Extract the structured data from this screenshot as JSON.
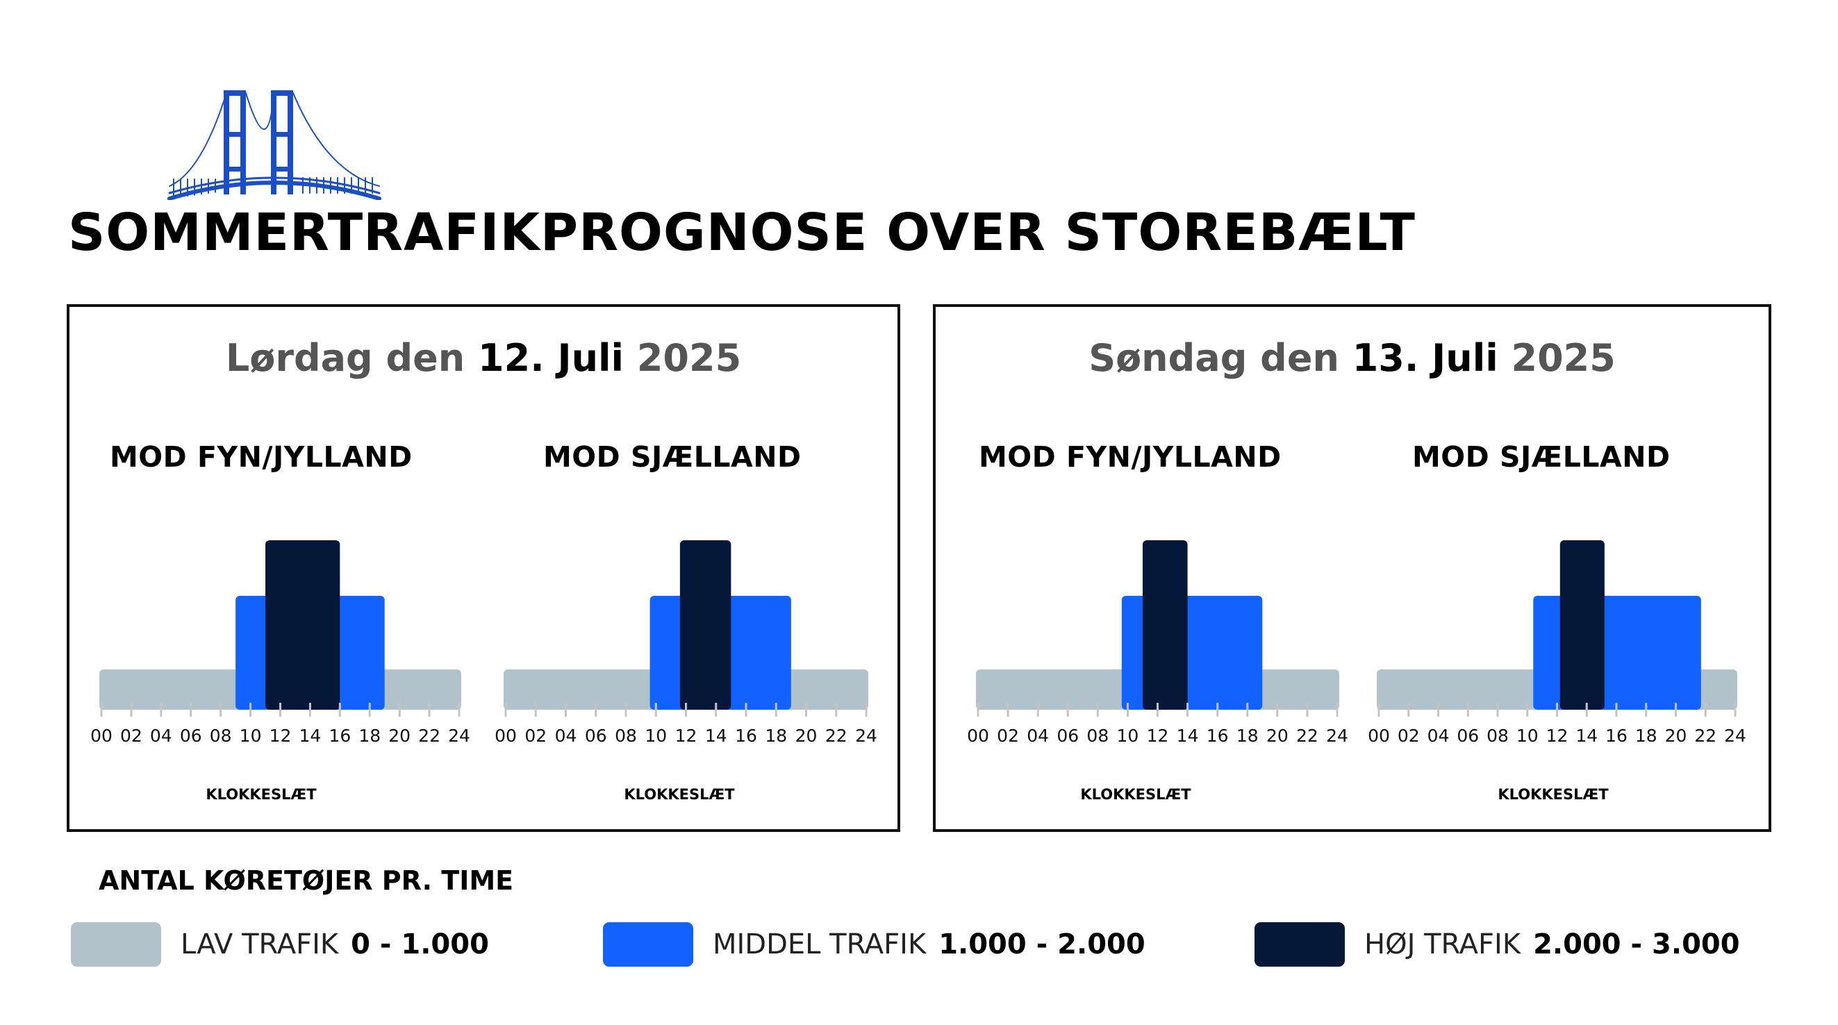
{
  "title": "SOMMERTRAFIKPROGNOSE OVER STOREBÆLT",
  "logo": {
    "icon": "bridge-logo-icon",
    "color": "#1c4fc4"
  },
  "colors": {
    "low": "#b2c2cb",
    "medium": "#1262ff",
    "high": "#06183a",
    "axis": "#c4c4c4",
    "tick_text": "#111111"
  },
  "days": [
    {
      "title_prefix": "Lørdag den ",
      "title_date": "12. Juli",
      "title_year": " 2025"
    },
    {
      "title_prefix": "Søndag den ",
      "title_date": "13. Juli",
      "title_year": " 2025"
    }
  ],
  "chart_data": [
    {
      "type": "bar",
      "day": "Lørdag den 12. Juli 2025",
      "title": "MOD FYN/JYLLAND",
      "xlabel": "KLOKKESLÆT",
      "x_range": [
        0,
        24
      ],
      "x_ticks": [
        "00",
        "02",
        "04",
        "06",
        "08",
        "10",
        "12",
        "14",
        "16",
        "18",
        "20",
        "22",
        "24"
      ],
      "y_range": [
        0,
        3
      ],
      "segments": [
        {
          "level": "low",
          "start": 0,
          "end": 24
        },
        {
          "level": "medium",
          "start": 9,
          "end": 19
        },
        {
          "level": "high",
          "start": 11,
          "end": 16
        }
      ]
    },
    {
      "type": "bar",
      "day": "Lørdag den 12. Juli 2025",
      "title": "MOD SJÆLLAND",
      "xlabel": "KLOKKESLÆT",
      "x_range": [
        0,
        24
      ],
      "x_ticks": [
        "00",
        "02",
        "04",
        "06",
        "08",
        "10",
        "12",
        "14",
        "16",
        "18",
        "20",
        "22",
        "24"
      ],
      "y_range": [
        0,
        3
      ],
      "segments": [
        {
          "level": "low",
          "start": 0,
          "end": 24
        },
        {
          "level": "medium",
          "start": 9.6,
          "end": 19
        },
        {
          "level": "high",
          "start": 11.6,
          "end": 15
        }
      ]
    },
    {
      "type": "bar",
      "day": "Søndag den 13. Juli 2025",
      "title": "MOD FYN/JYLLAND",
      "xlabel": "KLOKKESLÆT",
      "x_range": [
        0,
        24
      ],
      "x_ticks": [
        "00",
        "02",
        "04",
        "06",
        "08",
        "10",
        "12",
        "14",
        "16",
        "18",
        "20",
        "22",
        "24"
      ],
      "y_range": [
        0,
        3
      ],
      "segments": [
        {
          "level": "low",
          "start": 0,
          "end": 24
        },
        {
          "level": "medium",
          "start": 9.6,
          "end": 19
        },
        {
          "level": "high",
          "start": 11,
          "end": 14
        }
      ]
    },
    {
      "type": "bar",
      "day": "Søndag den 13. Juli 2025",
      "title": "MOD SJÆLLAND",
      "xlabel": "KLOKKESLÆT",
      "x_range": [
        0,
        24
      ],
      "x_ticks": [
        "00",
        "02",
        "04",
        "06",
        "08",
        "10",
        "12",
        "14",
        "16",
        "18",
        "20",
        "22",
        "24"
      ],
      "y_range": [
        0,
        3
      ],
      "segments": [
        {
          "level": "low",
          "start": 0,
          "end": 24
        },
        {
          "level": "medium",
          "start": 10.4,
          "end": 21.7
        },
        {
          "level": "high",
          "start": 12.2,
          "end": 15.2
        }
      ]
    }
  ],
  "legend": {
    "title": "ANTAL KØRETØJER PR. TIME",
    "items": [
      {
        "level": "low",
        "name": "LAV TRAFIK",
        "range": "0 - 1.000"
      },
      {
        "level": "medium",
        "name": "MIDDEL TRAFIK",
        "range": "1.000 - 2.000"
      },
      {
        "level": "high",
        "name": "HØJ TRAFIK",
        "range": "2.000 - 3.000"
      }
    ]
  }
}
